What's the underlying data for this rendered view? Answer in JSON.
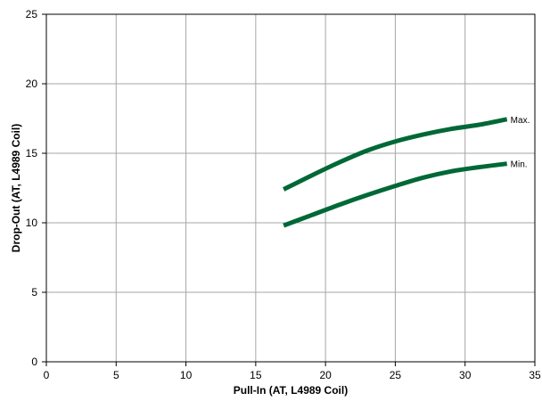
{
  "chart_data": {
    "type": "line",
    "title": "",
    "xlabel": "Pull-In (AT, L4989 Coil)",
    "ylabel": "Drop-Out (AT, L4989 Coil)",
    "xlim": [
      0,
      35
    ],
    "ylim": [
      0,
      25
    ],
    "xticks": [
      0,
      5,
      10,
      15,
      20,
      25,
      30,
      35
    ],
    "yticks": [
      0,
      5,
      10,
      15,
      20,
      25
    ],
    "grid": true,
    "legend": "none",
    "series": [
      {
        "name": "Max.",
        "color": "#006837",
        "x": [
          17,
          19,
          21,
          23,
          25,
          27,
          29,
          31,
          33
        ],
        "y": [
          12.4,
          13.4,
          14.35,
          15.2,
          15.85,
          16.35,
          16.75,
          17.05,
          17.45
        ]
      },
      {
        "name": "Min.",
        "color": "#006837",
        "x": [
          17,
          19,
          21,
          23,
          25,
          27,
          29,
          31,
          33
        ],
        "y": [
          9.8,
          10.55,
          11.3,
          12.0,
          12.65,
          13.25,
          13.7,
          14.0,
          14.25
        ]
      }
    ]
  }
}
